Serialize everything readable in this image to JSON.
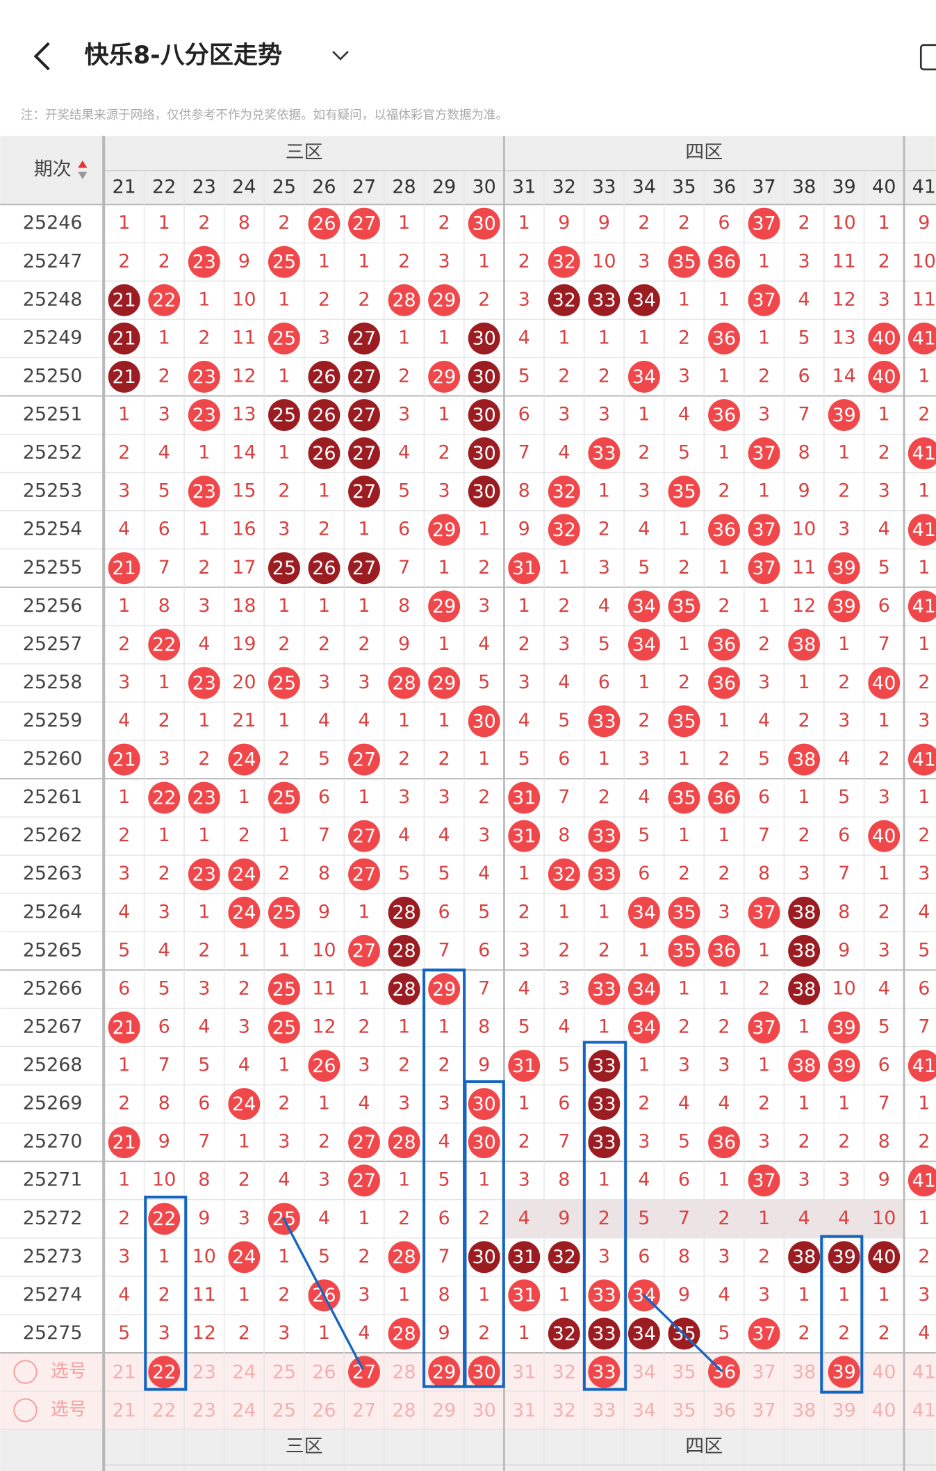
{
  "header": {
    "title": "快乐8-八分区走势",
    "note": "注：开奖结果来源于网络，仅供参考不作为兑奖依据。如有疑问，以福体彩官方数据为准。"
  },
  "table": {
    "issue_header": "期次",
    "zones": [
      "三区",
      "四区"
    ],
    "columns": [
      21,
      22,
      23,
      24,
      25,
      26,
      27,
      28,
      29,
      30,
      31,
      32,
      33,
      34,
      35,
      36,
      37,
      38,
      39,
      40,
      41
    ],
    "rows": [
      {
        "issue": "25246",
        "cells": [
          1,
          1,
          2,
          8,
          2,
          {
            "ball": 26
          },
          {
            "ball": 27
          },
          1,
          2,
          {
            "ball": 30
          },
          1,
          9,
          9,
          2,
          2,
          6,
          {
            "ball": 37
          },
          2,
          10,
          1,
          9
        ]
      },
      {
        "issue": "25247",
        "cells": [
          2,
          2,
          {
            "ball": 23
          },
          9,
          {
            "ball": 25
          },
          1,
          1,
          2,
          3,
          1,
          2,
          {
            "ball": 32
          },
          10,
          3,
          {
            "ball": 35
          },
          {
            "ball": 36
          },
          1,
          3,
          11,
          2,
          10
        ]
      },
      {
        "issue": "25248",
        "cells": [
          {
            "ball": 21,
            "dark": true
          },
          {
            "ball": 22
          },
          1,
          10,
          1,
          2,
          2,
          {
            "ball": 28
          },
          {
            "ball": 29
          },
          2,
          3,
          {
            "ball": 32,
            "dark": true
          },
          {
            "ball": 33,
            "dark": true
          },
          {
            "ball": 34,
            "dark": true
          },
          1,
          1,
          {
            "ball": 37
          },
          4,
          12,
          3,
          11
        ]
      },
      {
        "issue": "25249",
        "cells": [
          {
            "ball": 21,
            "dark": true
          },
          1,
          2,
          11,
          {
            "ball": 25
          },
          3,
          {
            "ball": 27,
            "dark": true
          },
          1,
          1,
          {
            "ball": 30,
            "dark": true
          },
          4,
          1,
          1,
          1,
          2,
          {
            "ball": 36
          },
          1,
          5,
          13,
          {
            "ball": 40
          },
          {
            "ball": 41
          }
        ]
      },
      {
        "issue": "25250",
        "cells": [
          {
            "ball": 21,
            "dark": true
          },
          2,
          {
            "ball": 23
          },
          12,
          1,
          {
            "ball": 26,
            "dark": true
          },
          {
            "ball": 27,
            "dark": true
          },
          2,
          {
            "ball": 29
          },
          {
            "ball": 30,
            "dark": true
          },
          5,
          2,
          2,
          {
            "ball": 34
          },
          3,
          1,
          2,
          6,
          14,
          {
            "ball": 40
          },
          1
        ]
      },
      {
        "issue": "25251",
        "cells": [
          1,
          3,
          {
            "ball": 23
          },
          13,
          {
            "ball": 25,
            "dark": true
          },
          {
            "ball": 26,
            "dark": true
          },
          {
            "ball": 27,
            "dark": true
          },
          3,
          1,
          {
            "ball": 30,
            "dark": true
          },
          6,
          3,
          3,
          1,
          4,
          {
            "ball": 36
          },
          3,
          7,
          {
            "ball": 39
          },
          1,
          2
        ]
      },
      {
        "issue": "25252",
        "cells": [
          2,
          4,
          1,
          14,
          1,
          {
            "ball": 26,
            "dark": true
          },
          {
            "ball": 27,
            "dark": true
          },
          4,
          2,
          {
            "ball": 30,
            "dark": true
          },
          7,
          4,
          {
            "ball": 33
          },
          2,
          5,
          1,
          {
            "ball": 37
          },
          8,
          1,
          2,
          {
            "ball": 41
          }
        ]
      },
      {
        "issue": "25253",
        "cells": [
          3,
          5,
          {
            "ball": 23
          },
          15,
          2,
          1,
          {
            "ball": 27,
            "dark": true
          },
          5,
          3,
          {
            "ball": 30,
            "dark": true
          },
          8,
          {
            "ball": 32
          },
          1,
          3,
          {
            "ball": 35
          },
          2,
          1,
          9,
          2,
          3,
          1
        ]
      },
      {
        "issue": "25254",
        "cells": [
          4,
          6,
          1,
          16,
          3,
          2,
          1,
          6,
          {
            "ball": 29
          },
          1,
          9,
          {
            "ball": 32
          },
          2,
          4,
          1,
          {
            "ball": 36
          },
          {
            "ball": 37
          },
          10,
          3,
          4,
          {
            "ball": 41
          }
        ]
      },
      {
        "issue": "25255",
        "cells": [
          {
            "ball": 21
          },
          7,
          2,
          17,
          {
            "ball": 25,
            "dark": true
          },
          {
            "ball": 26,
            "dark": true
          },
          {
            "ball": 27,
            "dark": true
          },
          7,
          1,
          2,
          {
            "ball": 31
          },
          1,
          3,
          5,
          2,
          1,
          {
            "ball": 37
          },
          11,
          {
            "ball": 39
          },
          5,
          1
        ]
      },
      {
        "issue": "25256",
        "cells": [
          1,
          8,
          3,
          18,
          1,
          1,
          1,
          8,
          {
            "ball": 29
          },
          3,
          1,
          2,
          4,
          {
            "ball": 34
          },
          {
            "ball": 35
          },
          2,
          1,
          12,
          {
            "ball": 39
          },
          6,
          {
            "ball": 41
          }
        ]
      },
      {
        "issue": "25257",
        "cells": [
          2,
          {
            "ball": 22
          },
          4,
          19,
          2,
          2,
          2,
          9,
          1,
          4,
          2,
          3,
          5,
          {
            "ball": 34
          },
          1,
          {
            "ball": 36
          },
          2,
          {
            "ball": 38
          },
          1,
          7,
          1
        ]
      },
      {
        "issue": "25258",
        "cells": [
          3,
          1,
          {
            "ball": 23
          },
          20,
          {
            "ball": 25
          },
          3,
          3,
          {
            "ball": 28
          },
          {
            "ball": 29
          },
          5,
          3,
          4,
          6,
          1,
          2,
          {
            "ball": 36
          },
          3,
          1,
          2,
          {
            "ball": 40
          },
          2
        ]
      },
      {
        "issue": "25259",
        "cells": [
          4,
          2,
          1,
          21,
          1,
          4,
          4,
          1,
          1,
          {
            "ball": 30
          },
          4,
          5,
          {
            "ball": 33
          },
          2,
          {
            "ball": 35
          },
          1,
          4,
          2,
          3,
          1,
          3
        ]
      },
      {
        "issue": "25260",
        "cells": [
          {
            "ball": 21
          },
          3,
          2,
          {
            "ball": 24
          },
          2,
          5,
          {
            "ball": 27
          },
          2,
          2,
          1,
          5,
          6,
          1,
          3,
          1,
          2,
          5,
          {
            "ball": 38
          },
          4,
          2,
          {
            "ball": 41
          }
        ]
      },
      {
        "issue": "25261",
        "cells": [
          1,
          {
            "ball": 22
          },
          {
            "ball": 23
          },
          1,
          {
            "ball": 25
          },
          6,
          1,
          3,
          3,
          2,
          {
            "ball": 31
          },
          7,
          2,
          4,
          {
            "ball": 35
          },
          {
            "ball": 36
          },
          6,
          1,
          5,
          3,
          1
        ]
      },
      {
        "issue": "25262",
        "cells": [
          2,
          1,
          1,
          2,
          1,
          7,
          {
            "ball": 27
          },
          4,
          4,
          3,
          {
            "ball": 31
          },
          8,
          {
            "ball": 33
          },
          5,
          1,
          1,
          7,
          2,
          6,
          {
            "ball": 40
          },
          2
        ]
      },
      {
        "issue": "25263",
        "cells": [
          3,
          2,
          {
            "ball": 23
          },
          {
            "ball": 24
          },
          2,
          8,
          {
            "ball": 27
          },
          5,
          5,
          4,
          1,
          {
            "ball": 32
          },
          {
            "ball": 33
          },
          6,
          2,
          2,
          8,
          3,
          7,
          1,
          3
        ]
      },
      {
        "issue": "25264",
        "cells": [
          4,
          3,
          1,
          {
            "ball": 24
          },
          {
            "ball": 25
          },
          9,
          1,
          {
            "ball": 28,
            "dark": true
          },
          6,
          5,
          2,
          1,
          1,
          {
            "ball": 34
          },
          {
            "ball": 35
          },
          3,
          {
            "ball": 37
          },
          {
            "ball": 38,
            "dark": true
          },
          8,
          2,
          4
        ]
      },
      {
        "issue": "25265",
        "cells": [
          5,
          4,
          2,
          1,
          1,
          10,
          {
            "ball": 27
          },
          {
            "ball": 28,
            "dark": true
          },
          7,
          6,
          3,
          2,
          2,
          1,
          {
            "ball": 35
          },
          {
            "ball": 36
          },
          1,
          {
            "ball": 38,
            "dark": true
          },
          9,
          3,
          5
        ]
      },
      {
        "issue": "25266",
        "cells": [
          6,
          5,
          3,
          2,
          {
            "ball": 25
          },
          11,
          1,
          {
            "ball": 28,
            "dark": true
          },
          {
            "ball": 29
          },
          7,
          4,
          3,
          {
            "ball": 33
          },
          {
            "ball": 34
          },
          1,
          1,
          2,
          {
            "ball": 38,
            "dark": true
          },
          10,
          4,
          6
        ]
      },
      {
        "issue": "25267",
        "cells": [
          {
            "ball": 21
          },
          6,
          4,
          3,
          {
            "ball": 25
          },
          12,
          2,
          1,
          1,
          8,
          5,
          4,
          1,
          {
            "ball": 34
          },
          2,
          2,
          {
            "ball": 37
          },
          1,
          {
            "ball": 39
          },
          5,
          7
        ]
      },
      {
        "issue": "25268",
        "cells": [
          1,
          7,
          5,
          4,
          1,
          {
            "ball": 26
          },
          3,
          2,
          2,
          9,
          {
            "ball": 31
          },
          5,
          {
            "ball": 33,
            "dark": true
          },
          1,
          3,
          3,
          1,
          {
            "ball": 38
          },
          {
            "ball": 39
          },
          6,
          {
            "ball": 41
          }
        ]
      },
      {
        "issue": "25269",
        "cells": [
          2,
          8,
          6,
          {
            "ball": 24
          },
          2,
          1,
          4,
          3,
          3,
          {
            "ball": 30
          },
          1,
          6,
          {
            "ball": 33,
            "dark": true
          },
          2,
          4,
          4,
          2,
          1,
          1,
          7,
          1
        ]
      },
      {
        "issue": "25270",
        "cells": [
          {
            "ball": 21
          },
          9,
          7,
          1,
          3,
          2,
          {
            "ball": 27
          },
          {
            "ball": 28
          },
          4,
          {
            "ball": 30
          },
          2,
          7,
          {
            "ball": 33,
            "dark": true
          },
          3,
          5,
          {
            "ball": 36
          },
          3,
          2,
          2,
          8,
          2
        ]
      },
      {
        "issue": "25271",
        "cells": [
          1,
          10,
          8,
          2,
          4,
          3,
          {
            "ball": 27
          },
          1,
          5,
          1,
          3,
          8,
          1,
          4,
          6,
          1,
          {
            "ball": 37
          },
          3,
          3,
          9,
          {
            "ball": 41
          }
        ]
      },
      {
        "issue": "25272",
        "cells": [
          2,
          {
            "ball": 22
          },
          9,
          3,
          {
            "ball": 25
          },
          4,
          1,
          2,
          6,
          2,
          4,
          9,
          2,
          5,
          7,
          2,
          1,
          4,
          4,
          10,
          1
        ]
      },
      {
        "issue": "25273",
        "cells": [
          3,
          1,
          10,
          {
            "ball": 24
          },
          1,
          5,
          2,
          {
            "ball": 28
          },
          7,
          {
            "ball": 30,
            "dark": true
          },
          {
            "ball": 31,
            "dark": true
          },
          {
            "ball": 32,
            "dark": true
          },
          3,
          6,
          8,
          3,
          2,
          {
            "ball": 38,
            "dark": true
          },
          {
            "ball": 39,
            "dark": true
          },
          {
            "ball": 40,
            "dark": true
          },
          2
        ]
      },
      {
        "issue": "25274",
        "cells": [
          4,
          2,
          11,
          1,
          2,
          {
            "ball": 26
          },
          3,
          1,
          8,
          1,
          {
            "ball": 31
          },
          1,
          {
            "ball": 33
          },
          {
            "ball": 34
          },
          9,
          4,
          3,
          1,
          1,
          1,
          3
        ]
      },
      {
        "issue": "25275",
        "cells": [
          5,
          3,
          12,
          2,
          3,
          1,
          4,
          {
            "ball": 28
          },
          9,
          2,
          1,
          {
            "ball": 32,
            "dark": true
          },
          {
            "ball": 33,
            "dark": true
          },
          {
            "ball": 34,
            "dark": true
          },
          {
            "ball": 35,
            "dark": true
          },
          5,
          {
            "ball": 37
          },
          2,
          2,
          2,
          4
        ]
      }
    ],
    "select_label": "选号",
    "select_rows": [
      {
        "selected": [
          22,
          27,
          29,
          30,
          33,
          36,
          39
        ]
      },
      {
        "selected": []
      }
    ]
  }
}
